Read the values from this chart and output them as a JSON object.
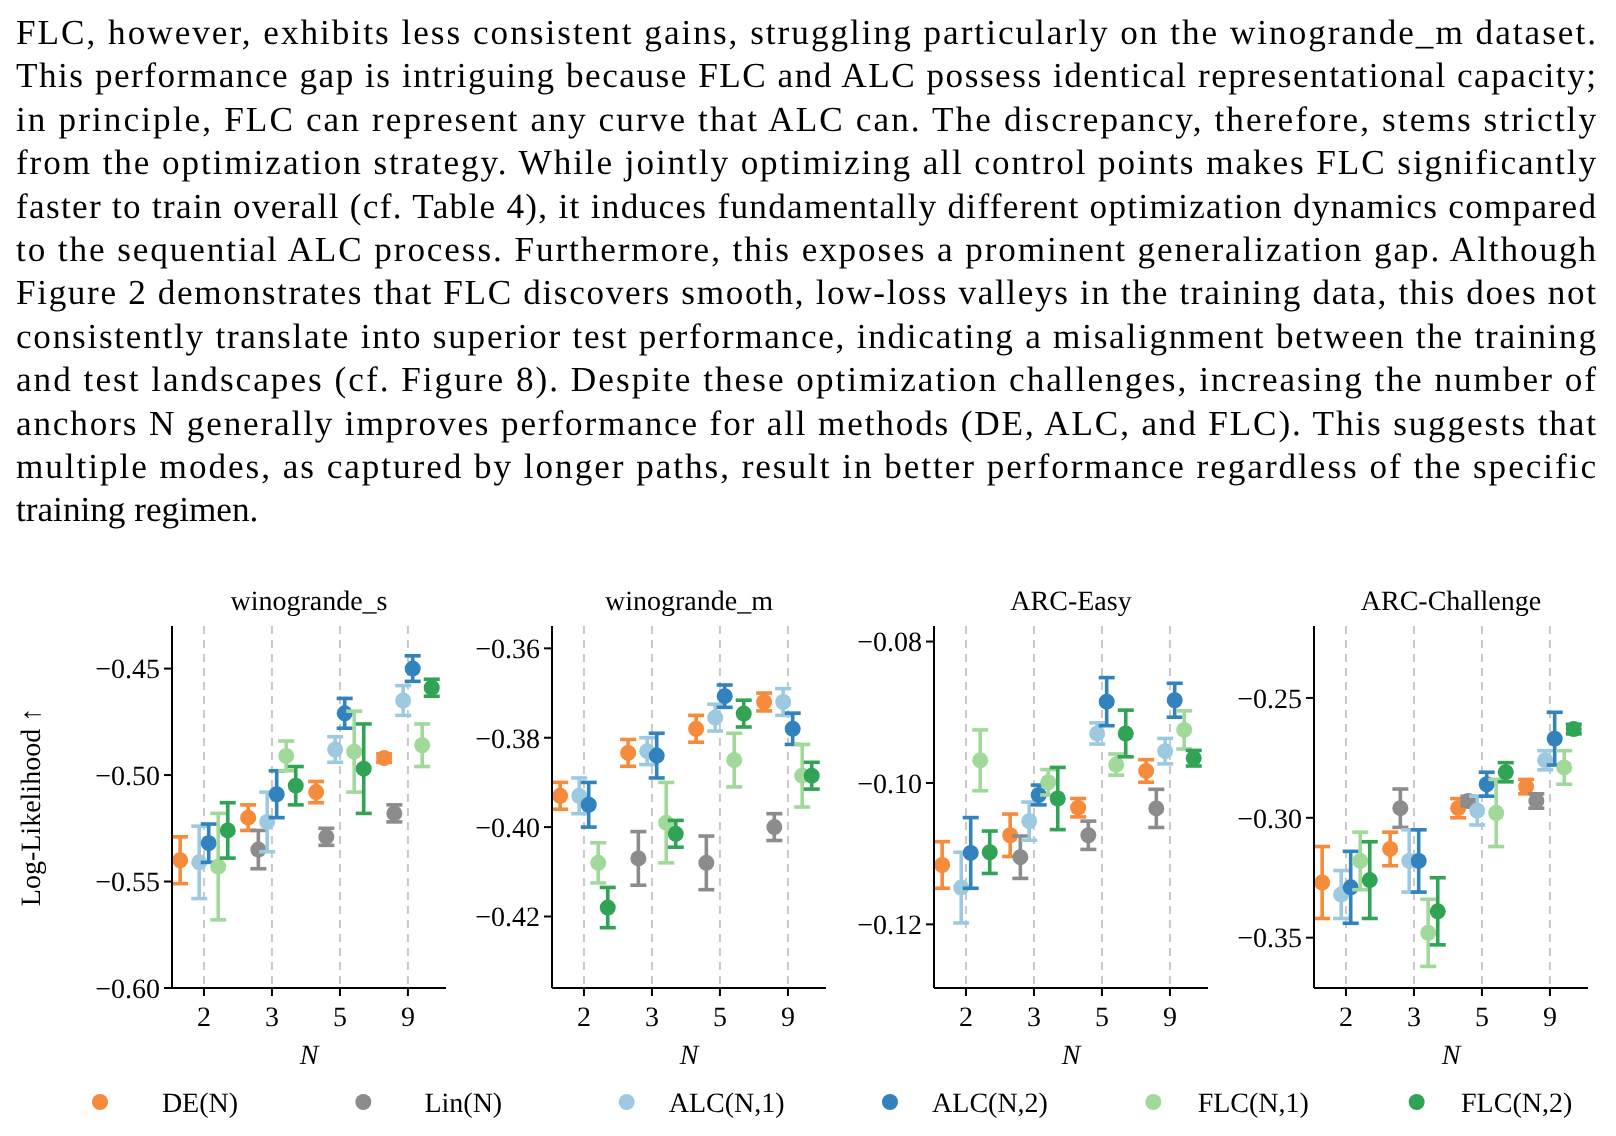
{
  "chart_data": [
    {
      "type": "other",
      "annotations": [
        "FLC, however, exhibits less consistent gains, struggling particularly on the winogrande_m dataset.",
        "This performance gap is intriguing because FLC and ALC possess identical representational capacity;",
        "in principle, FLC can represent any curve that ALC can. The discrepancy, therefore, stems strictly",
        "from the optimization strategy. While jointly optimizing all control points makes FLC significantly",
        "faster to train overall (cf. Table 4), it induces fundamentally different optimization dynamics compared",
        "to the sequential ALC process. Furthermore, this exposes a prominent generalization gap. Although",
        "Figure 2 demonstrates that FLC discovers smooth, low-loss valleys in the training data, this does not",
        "consistently translate into superior test performance, indicating a misalignment between the training",
        "and test landscapes (cf. Figure 8). Despite these optimization challenges, increasing the number of",
        "anchors N generally improves performance for all methods (DE, ALC, and FLC). This suggests that",
        "multiple modes, as captured by longer paths, result in better performance regardless of the specific",
        "training regimen."
      ]
    },
    {
      "type": "scatter",
      "title": "winogrande_s",
      "xlabel": "N",
      "ylabel": "Log-Likelihood ↑",
      "categories": [
        "2",
        "3",
        "5",
        "9"
      ],
      "ylim": [
        -0.6,
        -0.43
      ],
      "yticks": [
        {
          "value": -0.6,
          "label": "−0.60"
        },
        {
          "value": -0.55,
          "label": "−0.55"
        },
        {
          "value": -0.5,
          "label": "−0.50"
        },
        {
          "value": -0.45,
          "label": "−0.45"
        }
      ],
      "grid": "x",
      "legend": "bottom",
      "marker": "circle",
      "series": [
        {
          "name": "DE(N)",
          "color": "#f58b3b",
          "values": [
            -0.54,
            -0.52,
            -0.508,
            -0.492
          ],
          "errors": [
            0.011,
            0.006,
            0.005,
            0.002
          ]
        },
        {
          "name": "Lin(N)",
          "color": "#8c8c8c",
          "values": [
            null,
            -0.535,
            -0.529,
            -0.518
          ],
          "errors": [
            null,
            0.009,
            0.004,
            0.004
          ]
        },
        {
          "name": "ALC(N,1)",
          "color": "#9ecae1",
          "values": [
            -0.541,
            -0.522,
            -0.488,
            -0.465
          ],
          "errors": [
            0.017,
            0.014,
            0.006,
            0.007
          ]
        },
        {
          "name": "ALC(N,2)",
          "color": "#3182bd",
          "values": [
            -0.532,
            -0.509,
            -0.471,
            -0.45
          ],
          "errors": [
            0.009,
            0.011,
            0.007,
            0.006
          ]
        },
        {
          "name": "FLC(N,1)",
          "color": "#a1d99b",
          "values": [
            -0.543,
            -0.491,
            -0.489,
            -0.486
          ],
          "errors": [
            0.025,
            0.007,
            0.019,
            0.01
          ]
        },
        {
          "name": "FLC(N,2)",
          "color": "#31a354",
          "values": [
            -0.526,
            -0.505,
            -0.497,
            -0.459
          ],
          "errors": [
            0.013,
            0.009,
            0.021,
            0.004
          ]
        }
      ]
    },
    {
      "type": "scatter",
      "title": "winogrande_m",
      "xlabel": "N",
      "categories": [
        "2",
        "3",
        "5",
        "9"
      ],
      "ylim": [
        -0.436,
        -0.355
      ],
      "yticks": [
        {
          "value": -0.42,
          "label": "−0.42"
        },
        {
          "value": -0.4,
          "label": "−0.40"
        },
        {
          "value": -0.38,
          "label": "−0.38"
        },
        {
          "value": -0.36,
          "label": "−0.36"
        }
      ],
      "grid": "x",
      "marker": "circle",
      "series": [
        {
          "color": "#f58b3b",
          "values": [
            -0.393,
            -0.3834,
            -0.378,
            -0.372
          ],
          "errors": [
            0.003,
            0.003,
            0.003,
            0.002
          ]
        },
        {
          "color": "#8c8c8c",
          "values": [
            null,
            -0.407,
            -0.408,
            -0.4
          ],
          "errors": [
            null,
            0.006,
            0.006,
            0.003
          ]
        },
        {
          "color": "#9ecae1",
          "values": [
            -0.393,
            -0.383,
            -0.3755,
            -0.372
          ],
          "errors": [
            0.004,
            0.003,
            0.003,
            0.003
          ]
        },
        {
          "color": "#3182bd",
          "values": [
            -0.395,
            -0.384,
            -0.3707,
            -0.378
          ],
          "errors": [
            0.005,
            0.005,
            0.0025,
            0.0035
          ]
        },
        {
          "color": "#a1d99b",
          "values": [
            -0.408,
            -0.399,
            -0.385,
            -0.3885
          ],
          "errors": [
            0.0045,
            0.009,
            0.006,
            0.007
          ]
        },
        {
          "color": "#31a354",
          "values": [
            -0.418,
            -0.4015,
            -0.3746,
            -0.3885
          ],
          "errors": [
            0.0045,
            0.003,
            0.003,
            0.003
          ]
        }
      ]
    },
    {
      "type": "scatter",
      "title": "ARC-Easy",
      "xlabel": "N",
      "categories": [
        "2",
        "3",
        "5",
        "9"
      ],
      "ylim": [
        -0.129,
        -0.0778
      ],
      "yticks": [
        {
          "value": -0.12,
          "label": "−0.12"
        },
        {
          "value": -0.1,
          "label": "−0.10"
        },
        {
          "value": -0.08,
          "label": "−0.08"
        }
      ],
      "grid": "x",
      "marker": "circle",
      "series": [
        {
          "color": "#f58b3b",
          "values": [
            -0.1116,
            -0.1074,
            -0.1035,
            -0.0983
          ],
          "errors": [
            0.0033,
            0.003,
            0.0013,
            0.0016
          ]
        },
        {
          "color": "#8c8c8c",
          "values": [
            null,
            -0.1105,
            -0.1074,
            -0.1036
          ],
          "errors": [
            null,
            0.003,
            0.002,
            0.0027
          ]
        },
        {
          "color": "#9ecae1",
          "values": [
            -0.1148,
            -0.1054,
            -0.093,
            -0.0955
          ],
          "errors": [
            0.005,
            0.0027,
            0.0015,
            0.0018
          ]
        },
        {
          "color": "#3182bd",
          "values": [
            -0.1099,
            -0.1017,
            -0.0885,
            -0.0883
          ],
          "errors": [
            0.005,
            0.0014,
            0.0034,
            0.0024
          ]
        },
        {
          "color": "#a1d99b",
          "values": [
            -0.0968,
            -0.0999,
            -0.0974,
            -0.0925
          ],
          "errors": [
            0.0043,
            0.0018,
            0.0015,
            0.0027
          ]
        },
        {
          "color": "#31a354",
          "values": [
            -0.1098,
            -0.1022,
            -0.093,
            -0.0965
          ],
          "errors": [
            0.003,
            0.0044,
            0.0033,
            0.0011
          ]
        }
      ]
    },
    {
      "type": "scatter",
      "title": "ARC-Challenge",
      "xlabel": "N",
      "categories": [
        "2",
        "3",
        "5",
        "9"
      ],
      "ylim": [
        -0.371,
        -0.22
      ],
      "yticks": [
        {
          "value": -0.35,
          "label": "−0.35"
        },
        {
          "value": -0.3,
          "label": "−0.30"
        },
        {
          "value": -0.25,
          "label": "−0.25"
        }
      ],
      "grid": "x",
      "marker": "circle",
      "series": [
        {
          "color": "#f58b3b",
          "values": [
            -0.327,
            -0.313,
            -0.296,
            -0.287
          ],
          "errors": [
            0.015,
            0.007,
            0.004,
            0.003
          ]
        },
        {
          "color": "#8c8c8c",
          "values": [
            null,
            -0.296,
            -0.293,
            -0.293
          ],
          "errors": [
            null,
            0.008,
            0.002,
            0.003
          ]
        },
        {
          "color": "#9ecae1",
          "values": [
            -0.332,
            -0.318,
            -0.297,
            -0.276
          ],
          "errors": [
            0.01,
            0.013,
            0.006,
            0.004
          ]
        },
        {
          "color": "#3182bd",
          "values": [
            -0.329,
            -0.318,
            -0.286,
            -0.267
          ],
          "errors": [
            0.015,
            0.013,
            0.005,
            0.011
          ]
        },
        {
          "color": "#a1d99b",
          "values": [
            -0.318,
            -0.348,
            -0.298,
            -0.279
          ],
          "errors": [
            0.012,
            0.014,
            0.014,
            0.007
          ]
        },
        {
          "color": "#31a354",
          "values": [
            -0.326,
            -0.339,
            -0.281,
            -0.263
          ],
          "errors": [
            0.016,
            0.014,
            0.004,
            0.002
          ]
        }
      ]
    }
  ]
}
